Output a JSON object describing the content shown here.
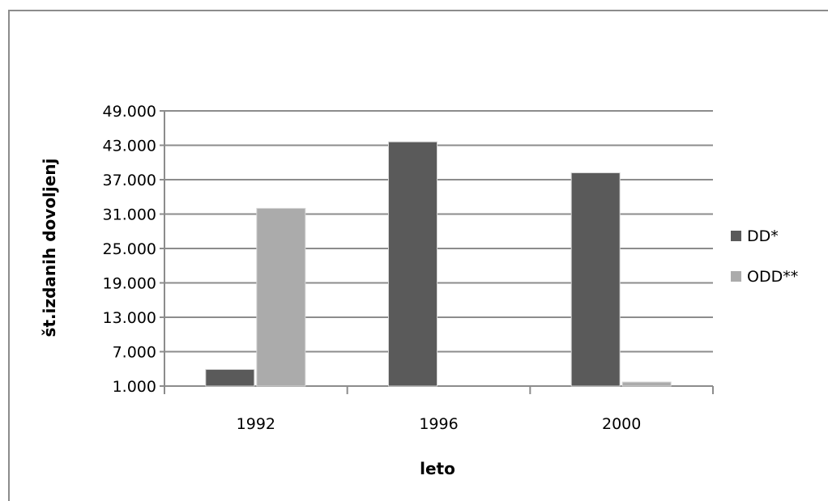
{
  "chart_data": {
    "type": "bar",
    "title": "",
    "xlabel": "leto",
    "ylabel": "št.izdanih dovoljenj",
    "categories": [
      "1992",
      "1996",
      "2000"
    ],
    "series": [
      {
        "name": "DD*",
        "color": "#5a5a5a",
        "values": [
          3900,
          43600,
          38200
        ]
      },
      {
        "name": "ODD**",
        "color": "#ababab",
        "values": [
          32000,
          0,
          1700
        ]
      }
    ],
    "ylim": [
      1000,
      49000
    ],
    "yticks": [
      1000,
      7000,
      13000,
      19000,
      25000,
      31000,
      37000,
      43000,
      49000
    ],
    "ytick_labels": [
      "1.000",
      "7.000",
      "13.000",
      "19.000",
      "25.000",
      "31.000",
      "37.000",
      "43.000",
      "49.000"
    ],
    "grid": true,
    "legend_position": "right"
  }
}
